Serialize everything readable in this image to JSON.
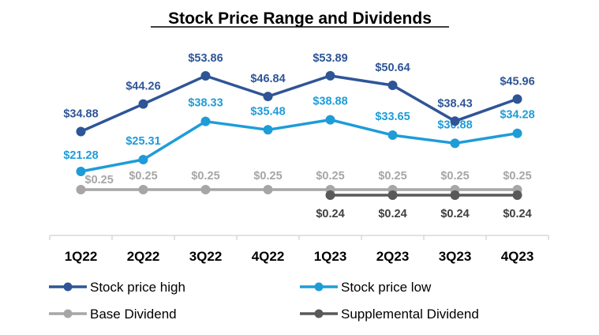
{
  "chart_data": {
    "type": "line",
    "title": "Stock Price Range and Dividends",
    "xlabel": "",
    "ylabel": "",
    "categories": [
      "1Q22",
      "2Q22",
      "3Q22",
      "4Q22",
      "1Q23",
      "2Q23",
      "3Q23",
      "4Q23"
    ],
    "series": [
      {
        "name": "Stock price high",
        "color": "#2F5597",
        "values": [
          34.88,
          44.26,
          53.86,
          46.84,
          53.89,
          50.64,
          38.43,
          45.96
        ],
        "labels": [
          "$34.88",
          "$44.26",
          "$53.86",
          "$46.84",
          "$53.89",
          "$50.64",
          "$38.43",
          "$45.96"
        ]
      },
      {
        "name": "Stock price low",
        "color": "#1E9CD8",
        "values": [
          21.28,
          25.31,
          38.33,
          35.48,
          38.88,
          33.65,
          30.88,
          34.28
        ],
        "labels": [
          "$21.28",
          "$25.31",
          "$38.33",
          "$35.48",
          "$38.88",
          "$33.65",
          "$30.88",
          "$34.28"
        ]
      },
      {
        "name": "Base Dividend",
        "color": "#A6A6A6",
        "values": [
          0.25,
          0.25,
          0.25,
          0.25,
          0.25,
          0.25,
          0.25,
          0.25
        ],
        "labels": [
          "$0.25",
          "$0.25",
          "$0.25",
          "$0.25",
          "$0.25",
          "$0.25",
          "$0.25",
          "$0.25"
        ]
      },
      {
        "name": "Supplemental Dividend",
        "color": "#595959",
        "values": [
          null,
          null,
          null,
          null,
          0.24,
          0.24,
          0.24,
          0.24
        ],
        "labels": [
          "",
          "",
          "",
          "",
          "$0.24",
          "$0.24",
          "$0.24",
          "$0.24"
        ]
      }
    ],
    "grid": false,
    "legend": "bottom"
  }
}
